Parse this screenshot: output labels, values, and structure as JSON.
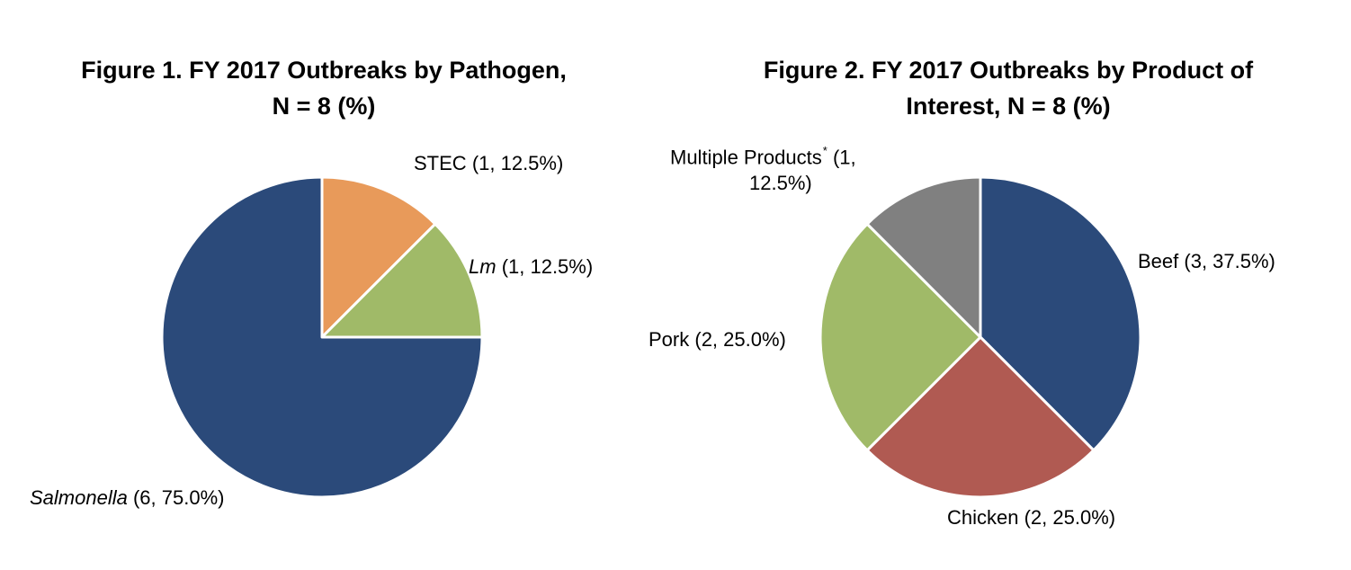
{
  "chart_data": [
    {
      "type": "pie",
      "title_lines": [
        "Figure 1. FY 2017 Outbreaks by Pathogen,",
        "N = 8 (%)"
      ],
      "slices": [
        {
          "name": "STEC",
          "count": 1,
          "percent": 12.5,
          "label_detail": "(1, 12.5%)",
          "italic": false,
          "color": "#E89A5A"
        },
        {
          "name": "Lm",
          "count": 1,
          "percent": 12.5,
          "label_detail": "(1, 12.5%)",
          "italic": true,
          "color": "#A0BA68"
        },
        {
          "name": "Salmonella",
          "count": 6,
          "percent": 75.0,
          "label_detail": "(6, 75.0%)",
          "italic": true,
          "color": "#2B4A7A"
        }
      ]
    },
    {
      "type": "pie",
      "title_lines": [
        "Figure 2. FY 2017 Outbreaks by Product of",
        "Interest, N = 8 (%)"
      ],
      "slices": [
        {
          "name": "Beef",
          "count": 3,
          "percent": 37.5,
          "label_detail": "(3, 37.5%)",
          "color": "#2B4A7A"
        },
        {
          "name": "Chicken",
          "count": 2,
          "percent": 25.0,
          "label_detail": "(2, 25.0%)",
          "color": "#B05A52"
        },
        {
          "name": "Pork",
          "count": 2,
          "percent": 25.0,
          "label_detail": "(2, 25.0%)",
          "color": "#A0BA68"
        },
        {
          "name": "Multiple Products",
          "marker": "*",
          "count": 1,
          "percent": 12.5,
          "label_line1_suffix": "(1,",
          "label_line2": "12.5%)",
          "color": "#808080"
        }
      ]
    }
  ]
}
